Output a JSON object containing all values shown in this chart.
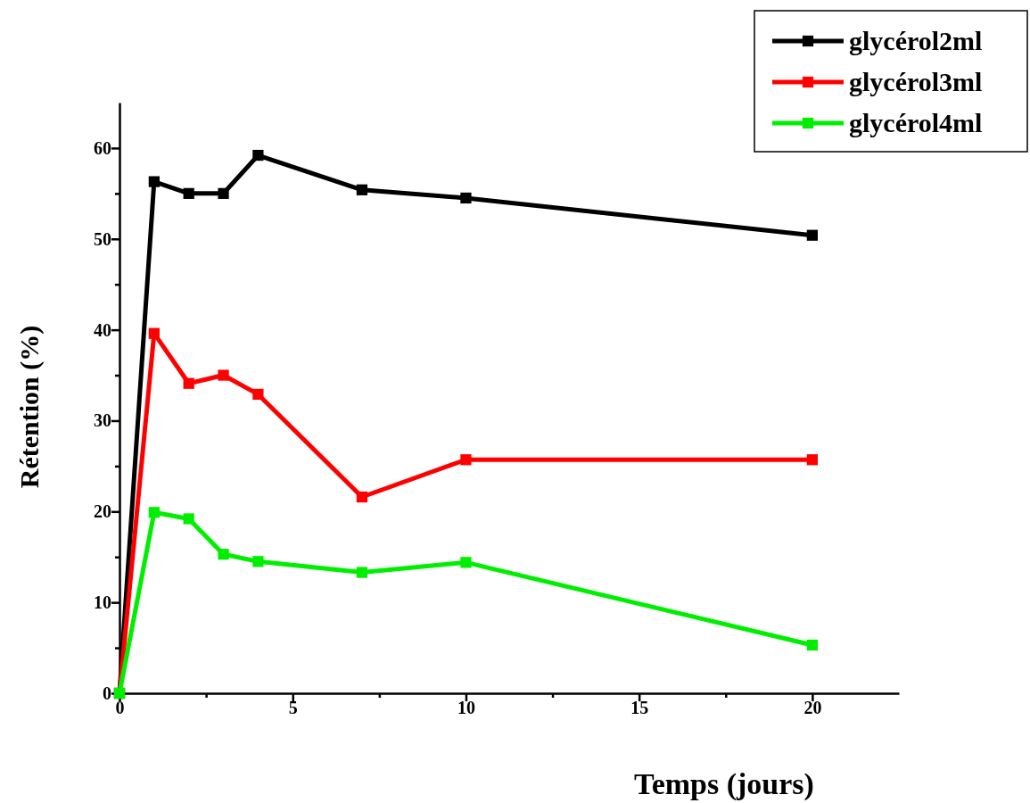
{
  "chart_data": {
    "type": "line",
    "xlabel": "Temps  (jours)",
    "ylabel": "Rétention (%)",
    "xlim": [
      0,
      22.5
    ],
    "ylim": [
      0,
      65
    ],
    "xticks": [
      0,
      {
        "value": 2.5,
        "label": null
      },
      5,
      {
        "value": 7.5,
        "label": null
      },
      10,
      {
        "value": 12.5,
        "label": null
      },
      15,
      {
        "value": 17.5,
        "label": null
      },
      20
    ],
    "yticks": [
      0,
      {
        "value": 5,
        "label": null
      },
      10,
      {
        "value": 15,
        "label": null
      },
      20,
      {
        "value": 25,
        "label": null
      },
      30,
      {
        "value": 35,
        "label": null
      },
      40,
      {
        "value": 45,
        "label": null
      },
      50,
      {
        "value": 55,
        "label": null
      },
      60
    ],
    "x": [
      0,
      1,
      2,
      3,
      4,
      7,
      10,
      20
    ],
    "marker": "square",
    "line_style": "solid",
    "grid": false,
    "legend": "top right",
    "series": [
      {
        "name": "glycérol2ml",
        "color": "#000000",
        "values": [
          0,
          56.3,
          55.0,
          55.0,
          59.2,
          55.4,
          54.5,
          50.4
        ]
      },
      {
        "name": "glycérol3ml",
        "color": "#ff0000",
        "values": [
          0,
          39.6,
          34.1,
          35.0,
          32.9,
          21.6,
          25.7,
          25.7
        ]
      },
      {
        "name": "glycérol4ml",
        "color": "#00ee00",
        "values": [
          0,
          19.9,
          19.2,
          15.3,
          14.5,
          13.3,
          14.4,
          5.3
        ]
      }
    ]
  }
}
